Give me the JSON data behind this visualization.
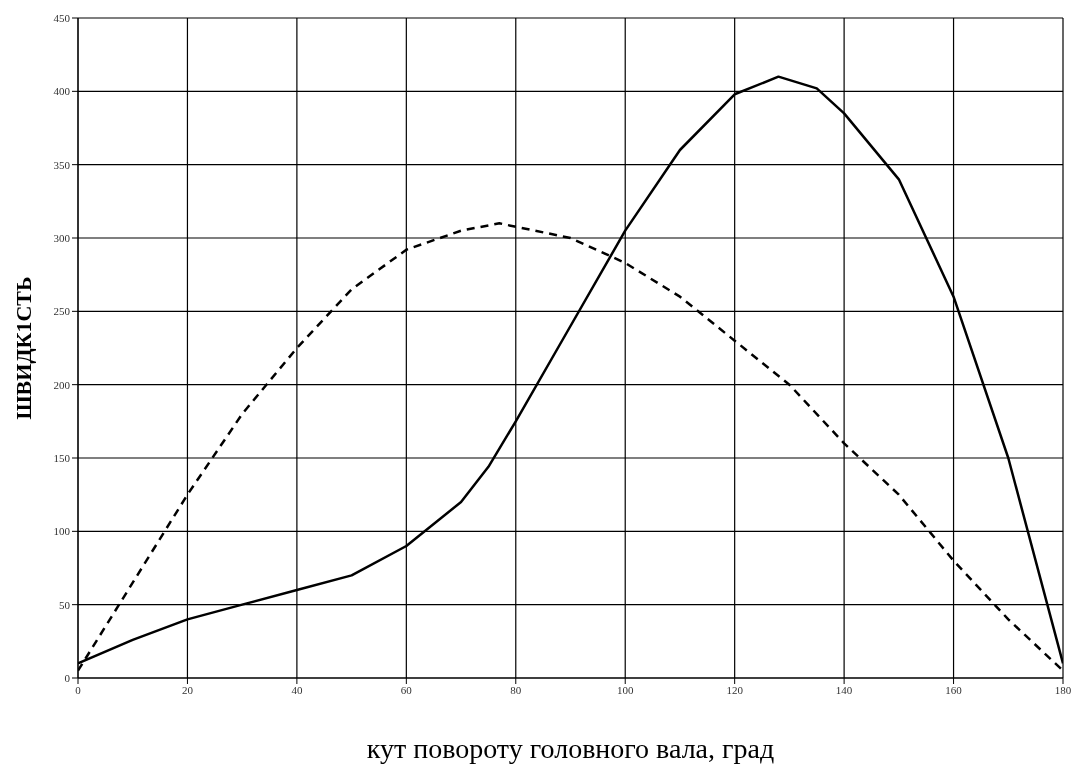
{
  "chart_data": {
    "type": "line",
    "xlabel": "кут повороту головного вала, град",
    "ylabel": "ШВИДК1СТЬ",
    "xlim": [
      0,
      180
    ],
    "xticks": [
      0,
      20,
      40,
      60,
      80,
      100,
      120,
      140,
      160,
      180
    ],
    "ylim": [
      0,
      450
    ],
    "yticks": [
      0,
      50,
      100,
      150,
      200,
      250,
      300,
      350,
      400,
      450
    ],
    "grid": true,
    "marker": "none",
    "series": [
      {
        "color": "#000000",
        "line_style": "solid",
        "x": [
          0,
          10,
          20,
          30,
          40,
          50,
          60,
          70,
          75,
          80,
          90,
          100,
          110,
          120,
          128,
          135,
          140,
          150,
          160,
          170,
          180
        ],
        "values": [
          10,
          26,
          40,
          50,
          60,
          70,
          90,
          120,
          144,
          175,
          240,
          305,
          360,
          398,
          410,
          402,
          385,
          340,
          260,
          150,
          10
        ]
      },
      {
        "color": "#000000",
        "line_style": "dashed",
        "x": [
          0,
          10,
          20,
          30,
          40,
          50,
          60,
          70,
          77,
          90,
          100,
          110,
          120,
          130,
          140,
          150,
          160,
          170,
          180
        ],
        "values": [
          5,
          65,
          125,
          180,
          225,
          265,
          292,
          305,
          310,
          300,
          283,
          260,
          230,
          200,
          160,
          125,
          80,
          40,
          5
        ]
      }
    ]
  }
}
